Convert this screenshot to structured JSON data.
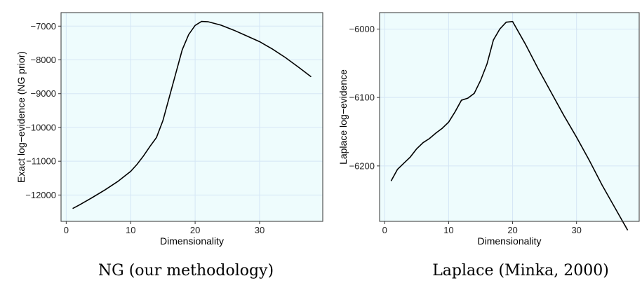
{
  "chart_data": [
    {
      "type": "line",
      "xlabel": "Dimensionality",
      "ylabel": "Exact log−evidence (NG prior)",
      "caption": "NG (our methodology)",
      "xlim": [
        -0.8,
        39.8
      ],
      "ylim": [
        -12780,
        -6600
      ],
      "xticks": [
        0,
        10,
        20,
        30
      ],
      "yticks": [
        -12000,
        -11000,
        -10000,
        -9000,
        -8000,
        -7000
      ],
      "ytick_labels": [
        "−12000",
        "−11000",
        "−10000",
        "−9000",
        "−8000",
        "−7000"
      ],
      "grid": true,
      "series": [
        {
          "x": [
            1,
            2,
            4,
            6,
            8,
            10,
            11,
            12,
            13,
            14,
            15,
            16,
            17,
            18,
            19,
            20,
            21,
            22,
            24,
            26,
            28,
            30,
            32,
            34,
            36,
            38
          ],
          "y": [
            -12400,
            -12300,
            -12080,
            -11850,
            -11600,
            -11300,
            -11090,
            -10840,
            -10560,
            -10300,
            -9800,
            -9100,
            -8400,
            -7700,
            -7250,
            -6980,
            -6860,
            -6870,
            -6970,
            -7120,
            -7290,
            -7460,
            -7680,
            -7930,
            -8210,
            -8500
          ]
        }
      ]
    },
    {
      "type": "line",
      "xlabel": "Dimensionality",
      "ylabel": "Laplace log−evidence",
      "caption": "Laplace (Minka, 2000)",
      "xlim": [
        -0.8,
        39.8
      ],
      "ylim": [
        -6281,
        -5976
      ],
      "xticks": [
        0,
        10,
        20,
        30
      ],
      "yticks": [
        -6200,
        -6100,
        -6000
      ],
      "ytick_labels": [
        "−6200",
        "−6100",
        "−6000"
      ],
      "grid": true,
      "series": [
        {
          "x": [
            1,
            2,
            3,
            4,
            5,
            6,
            7,
            8,
            9,
            10,
            11,
            12,
            13,
            14,
            15,
            16,
            17,
            18,
            19,
            20,
            22,
            24,
            26,
            28,
            29,
            30,
            32,
            34,
            36,
            38
          ],
          "y": [
            -6222,
            -6205,
            -6196,
            -6187,
            -6175,
            -6166,
            -6160,
            -6152,
            -6145,
            -6136,
            -6121,
            -6104,
            -6101,
            -6094,
            -6075,
            -6051,
            -6016,
            -6000,
            -5990,
            -5989,
            -6022,
            -6058,
            -6092,
            -6126,
            -6142,
            -6158,
            -6192,
            -6228,
            -6261,
            -6294
          ]
        }
      ]
    }
  ]
}
